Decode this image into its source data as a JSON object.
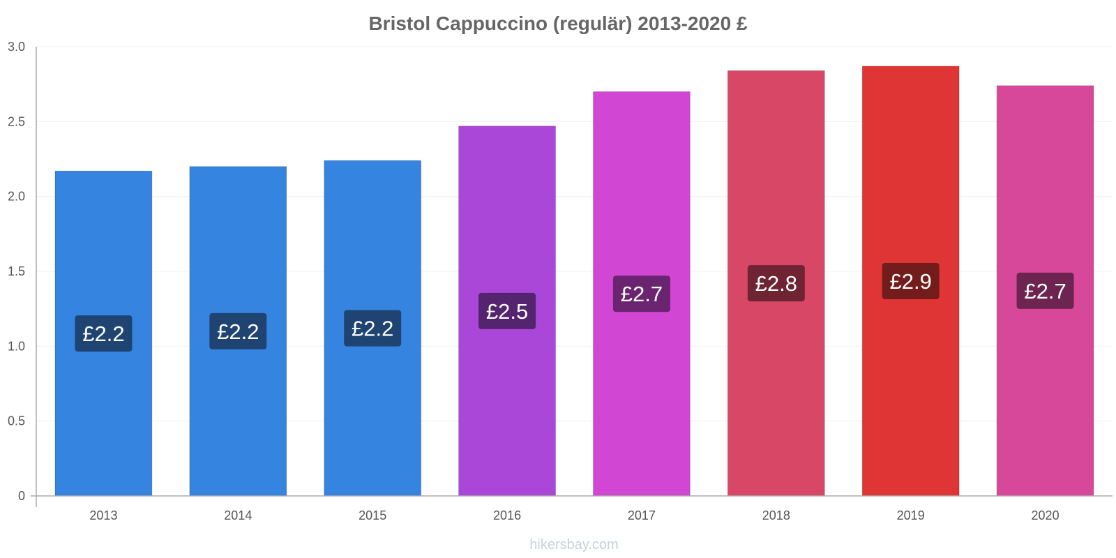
{
  "chart_data": {
    "type": "bar",
    "title": "Bristol Cappuccino (regulär) 2013-2020 £",
    "categories": [
      "2013",
      "2014",
      "2015",
      "2016",
      "2017",
      "2018",
      "2019",
      "2020"
    ],
    "values": [
      2.17,
      2.2,
      2.24,
      2.47,
      2.7,
      2.84,
      2.87,
      2.74
    ],
    "data_labels": [
      "£2.2",
      "£2.2",
      "£2.2",
      "£2.5",
      "£2.7",
      "£2.8",
      "£2.9",
      "£2.7"
    ],
    "bar_colors": [
      "#3584e0",
      "#3584e0",
      "#3584e0",
      "#aa46d8",
      "#d246d4",
      "#d84866",
      "#e03535",
      "#d8489a"
    ],
    "label_box_colors": [
      "#1f4472",
      "#1f4472",
      "#1f4472",
      "#55246e",
      "#6a2470",
      "#6e2432",
      "#731c1c",
      "#6e2450"
    ],
    "ylim": [
      0,
      3.0
    ],
    "yticks": [
      0,
      0.5,
      1.0,
      1.5,
      2.0,
      2.5,
      3.0
    ],
    "ytick_labels": [
      "0",
      "0.5",
      "1.0",
      "1.5",
      "2.0",
      "2.5",
      "3.0"
    ],
    "xlabel": "",
    "ylabel": "",
    "grid": true,
    "legend": "none"
  },
  "watermark": "hikersbay.com"
}
